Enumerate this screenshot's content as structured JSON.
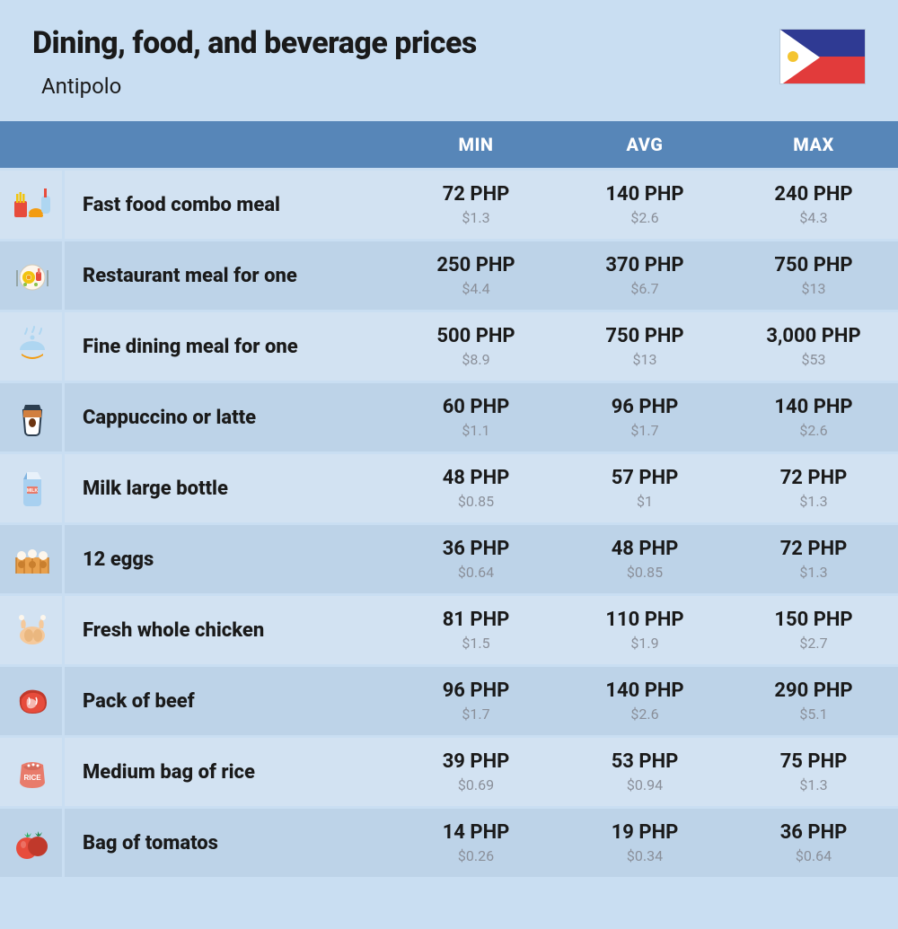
{
  "header": {
    "title": "Dining, food, and beverage prices",
    "subtitle": "Antipolo"
  },
  "flag": {
    "blue": "#2f3a93",
    "red": "#e23b3b",
    "white": "#ffffff",
    "sun": "#f4c430"
  },
  "columns": {
    "min": "MIN",
    "avg": "AVG",
    "max": "MAX"
  },
  "colors": {
    "page_bg": "#c9def2",
    "header_row_bg": "#5786b8",
    "header_row_text": "#ffffff",
    "row_odd_bg": "#d2e2f2",
    "row_even_bg": "#bdd3e8",
    "text_primary": "#1a1a1a",
    "text_secondary": "#8a8f99"
  },
  "rows": [
    {
      "icon": "fastfood-icon",
      "label": "Fast food combo meal",
      "min_php": "72 PHP",
      "min_usd": "$1.3",
      "avg_php": "140 PHP",
      "avg_usd": "$2.6",
      "max_php": "240 PHP",
      "max_usd": "$4.3"
    },
    {
      "icon": "restaurant-icon",
      "label": "Restaurant meal for one",
      "min_php": "250 PHP",
      "min_usd": "$4.4",
      "avg_php": "370 PHP",
      "avg_usd": "$6.7",
      "max_php": "750 PHP",
      "max_usd": "$13"
    },
    {
      "icon": "finedining-icon",
      "label": "Fine dining meal for one",
      "min_php": "500 PHP",
      "min_usd": "$8.9",
      "avg_php": "750 PHP",
      "avg_usd": "$13",
      "max_php": "3,000 PHP",
      "max_usd": "$53"
    },
    {
      "icon": "coffee-icon",
      "label": "Cappuccino or latte",
      "min_php": "60 PHP",
      "min_usd": "$1.1",
      "avg_php": "96 PHP",
      "avg_usd": "$1.7",
      "max_php": "140 PHP",
      "max_usd": "$2.6"
    },
    {
      "icon": "milk-icon",
      "label": "Milk large bottle",
      "min_php": "48 PHP",
      "min_usd": "$0.85",
      "avg_php": "57 PHP",
      "avg_usd": "$1",
      "max_php": "72 PHP",
      "max_usd": "$1.3"
    },
    {
      "icon": "eggs-icon",
      "label": "12 eggs",
      "min_php": "36 PHP",
      "min_usd": "$0.64",
      "avg_php": "48 PHP",
      "avg_usd": "$0.85",
      "max_php": "72 PHP",
      "max_usd": "$1.3"
    },
    {
      "icon": "chicken-icon",
      "label": "Fresh whole chicken",
      "min_php": "81 PHP",
      "min_usd": "$1.5",
      "avg_php": "110 PHP",
      "avg_usd": "$1.9",
      "max_php": "150 PHP",
      "max_usd": "$2.7"
    },
    {
      "icon": "beef-icon",
      "label": "Pack of beef",
      "min_php": "96 PHP",
      "min_usd": "$1.7",
      "avg_php": "140 PHP",
      "avg_usd": "$2.6",
      "max_php": "290 PHP",
      "max_usd": "$5.1"
    },
    {
      "icon": "rice-icon",
      "label": "Medium bag of rice",
      "min_php": "39 PHP",
      "min_usd": "$0.69",
      "avg_php": "53 PHP",
      "avg_usd": "$0.94",
      "max_php": "75 PHP",
      "max_usd": "$1.3"
    },
    {
      "icon": "tomato-icon",
      "label": "Bag of tomatos",
      "min_php": "14 PHP",
      "min_usd": "$0.26",
      "avg_php": "19 PHP",
      "avg_usd": "$0.34",
      "max_php": "36 PHP",
      "max_usd": "$0.64"
    }
  ]
}
